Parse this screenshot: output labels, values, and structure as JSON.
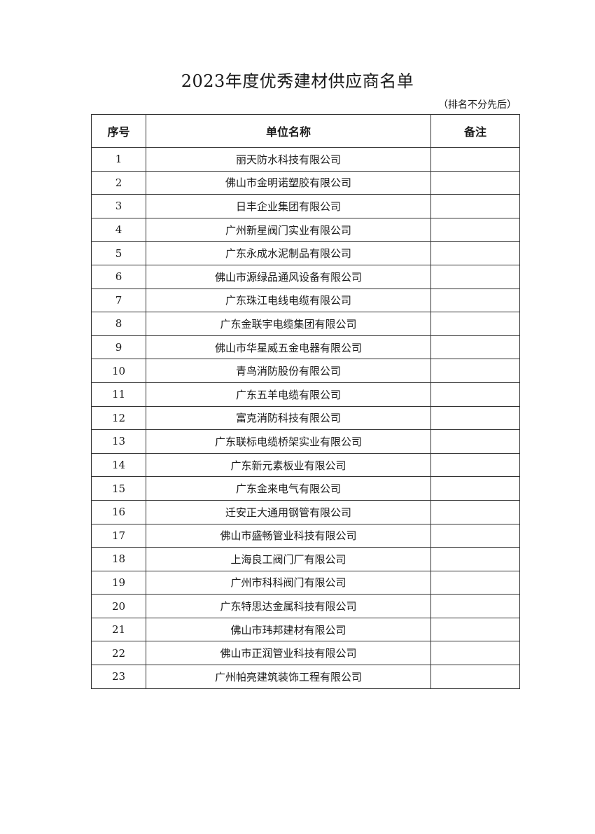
{
  "title": "2023年度优秀建材供应商名单",
  "note": "（排名不分先后）",
  "table": {
    "headers": [
      "序号",
      "单位名称",
      "备注"
    ],
    "rows": [
      [
        "1",
        "丽天防水科技有限公司",
        ""
      ],
      [
        "2",
        "佛山市金明诺塑胶有限公司",
        ""
      ],
      [
        "3",
        "日丰企业集团有限公司",
        ""
      ],
      [
        "4",
        "广州新星阀门实业有限公司",
        ""
      ],
      [
        "5",
        "广东永成水泥制品有限公司",
        ""
      ],
      [
        "6",
        "佛山市源绿品通风设备有限公司",
        ""
      ],
      [
        "7",
        "广东珠江电线电缆有限公司",
        ""
      ],
      [
        "8",
        "广东金联宇电缆集团有限公司",
        ""
      ],
      [
        "9",
        "佛山市华星威五金电器有限公司",
        ""
      ],
      [
        "10",
        "青鸟消防股份有限公司",
        ""
      ],
      [
        "11",
        "广东五羊电缆有限公司",
        ""
      ],
      [
        "12",
        "富克消防科技有限公司",
        ""
      ],
      [
        "13",
        "广东联标电缆桥架实业有限公司",
        ""
      ],
      [
        "14",
        "广东新元素板业有限公司",
        ""
      ],
      [
        "15",
        "广东金来电气有限公司",
        ""
      ],
      [
        "16",
        "迁安正大通用钢管有限公司",
        ""
      ],
      [
        "17",
        "佛山市盛畅管业科技有限公司",
        ""
      ],
      [
        "18",
        "上海良工阀门厂有限公司",
        ""
      ],
      [
        "19",
        "广州市科科阀门有限公司",
        ""
      ],
      [
        "20",
        "广东特思达金属科技有限公司",
        ""
      ],
      [
        "21",
        "佛山市玮邦建材有限公司",
        ""
      ],
      [
        "22",
        "佛山市正润管业科技有限公司",
        ""
      ],
      [
        "23",
        "广州帕亮建筑装饰工程有限公司",
        ""
      ]
    ]
  }
}
